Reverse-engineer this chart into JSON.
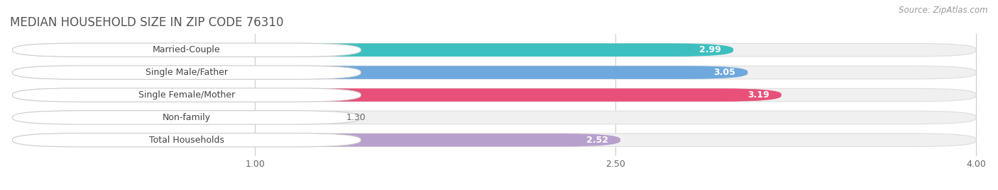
{
  "title": "MEDIAN HOUSEHOLD SIZE IN ZIP CODE 76310",
  "source": "Source: ZipAtlas.com",
  "categories": [
    "Married-Couple",
    "Single Male/Father",
    "Single Female/Mother",
    "Non-family",
    "Total Households"
  ],
  "values": [
    2.99,
    3.05,
    3.19,
    1.3,
    2.52
  ],
  "bar_colors": [
    "#3DBFBF",
    "#6FA8DC",
    "#E8507A",
    "#F5C99A",
    "#B8A0CC"
  ],
  "label_bg_colors": [
    "#3DBFBF",
    "#6FA8DC",
    "#E8507A",
    "#F5C99A",
    "#B8A0CC"
  ],
  "xlim_min": 0.0,
  "xlim_max": 4.0,
  "xticks": [
    1.0,
    2.5,
    4.0
  ],
  "xtick_labels": [
    "1.00",
    "2.50",
    "4.00"
  ],
  "background_color": "#ffffff",
  "bar_bg_color": "#f0f0f0",
  "title_fontsize": 12,
  "label_fontsize": 9,
  "value_fontsize": 9,
  "source_fontsize": 8.5,
  "bar_height": 0.58,
  "bar_gap": 0.42
}
